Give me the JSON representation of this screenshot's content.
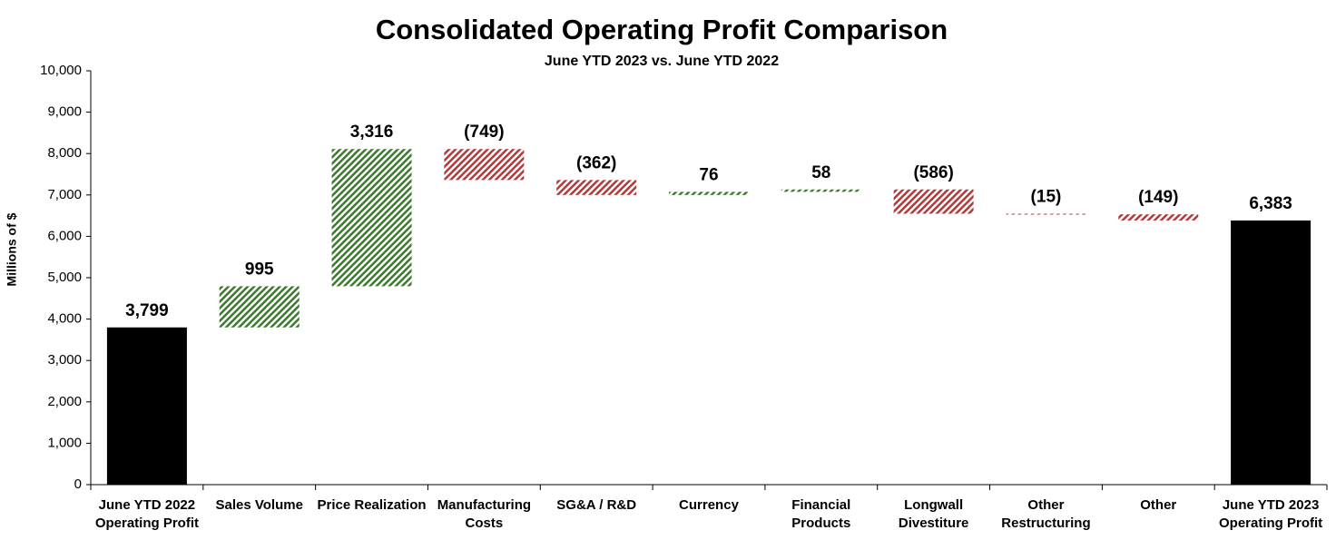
{
  "chart_data": {
    "type": "waterfall",
    "title": "Consolidated Operating Profit Comparison",
    "subtitle": "June YTD 2023 vs. June YTD 2022",
    "y_label": "Millions of $",
    "categories": [
      "June YTD 2022 Operating Profit",
      "Sales Volume",
      "Price Realization",
      "Manufacturing Costs",
      "SG&A / R&D",
      "Currency",
      "Financial Products",
      "Longwall Divestiture",
      "Other Restructuring",
      "Other",
      "June YTD 2023 Operating Profit"
    ],
    "values": [
      3799,
      995,
      3316,
      -749,
      -362,
      76,
      58,
      -586,
      -15,
      -149,
      6383
    ],
    "value_labels": [
      "3,799",
      "995",
      "3,316",
      "(749)",
      "(362)",
      "76",
      "58",
      "(586)",
      "(15)",
      "(149)",
      "6,383"
    ],
    "total_color": "#000000",
    "increase_color": "#3c7a2e",
    "decrease_color": "#b23a3a",
    "ylim": [
      0,
      10000
    ],
    "yticks": [
      0,
      {
        "value": 1000,
        "label": "1,000"
      },
      {
        "value": 2000,
        "label": "2,000"
      },
      {
        "value": 3000,
        "label": "3,000"
      },
      {
        "value": 4000,
        "label": "4,000"
      },
      {
        "value": 5000,
        "label": "5,000"
      },
      {
        "value": 6000,
        "label": "6,000"
      },
      {
        "value": 7000,
        "label": "7,000"
      },
      {
        "value": 8000,
        "label": "8,000"
      },
      {
        "value": 9000,
        "label": "9,000"
      },
      {
        "value": 10000,
        "label": "10,000"
      }
    ],
    "grid": false
  }
}
